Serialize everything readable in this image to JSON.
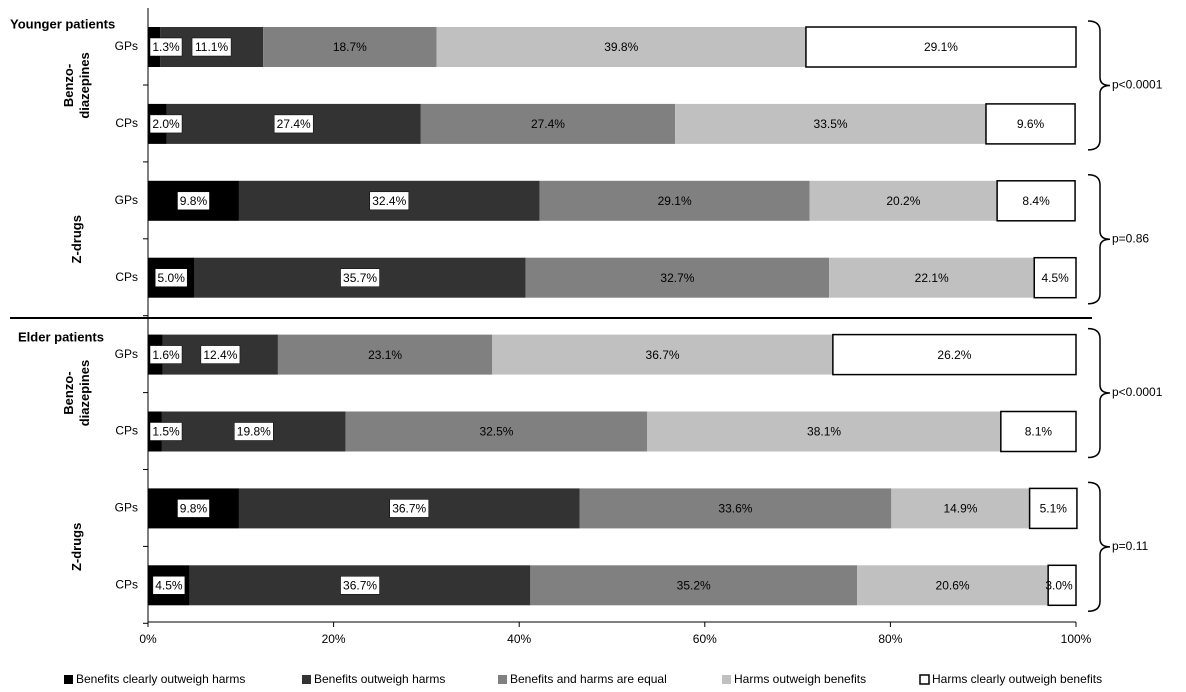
{
  "chart_data": {
    "type": "bar",
    "orientation": "horizontal",
    "stacked": true,
    "categories": [
      "GPs",
      "CPs",
      "GPs",
      "CPs",
      "GPs",
      "CPs",
      "GPs",
      "CPs"
    ],
    "panels": [
      {
        "title": "Younger patients",
        "groups": [
          {
            "label": [
              "Benzo-",
              "diazepines"
            ],
            "p_value": "p<0.0001"
          },
          {
            "label": [
              "Z-drugs"
            ],
            "p_value": "p=0.86"
          }
        ]
      },
      {
        "title": "Elder patients",
        "groups": [
          {
            "label": [
              "Benzo-",
              "diazepines"
            ],
            "p_value": "p<0.0001"
          },
          {
            "label": [
              "Z-drugs"
            ],
            "p_value": "p=0.11"
          }
        ]
      }
    ],
    "series": [
      {
        "name": "Benefits clearly outweigh harms",
        "color": "#000000",
        "values": [
          1.3,
          2.0,
          9.8,
          5.0,
          1.6,
          1.5,
          9.8,
          4.5
        ],
        "value_labels": [
          "1.3%",
          "2.0%",
          "9.8%",
          "5.0%",
          "1.6%",
          "1.5%",
          "9.8%",
          "4.5%"
        ]
      },
      {
        "name": "Benefits outweigh harms",
        "color": "#333333",
        "values": [
          11.1,
          27.4,
          32.4,
          35.7,
          12.4,
          19.8,
          36.7,
          36.7
        ],
        "value_labels": [
          "11.1%",
          "27.4%",
          "32.4%",
          "35.7%",
          "12.4%",
          "19.8%",
          "36.7%",
          "36.7%"
        ]
      },
      {
        "name": "Benefits and harms are equal",
        "color": "#808080",
        "values": [
          18.7,
          27.4,
          29.1,
          32.7,
          23.1,
          32.5,
          33.6,
          35.2
        ],
        "value_labels": [
          "18.7%",
          "27.4%",
          "29.1%",
          "32.7%",
          "23.1%",
          "32.5%",
          "33.6%",
          "35.2%"
        ]
      },
      {
        "name": "Harms outweigh benefits",
        "color": "#c0c0c0",
        "values": [
          39.8,
          33.5,
          20.2,
          22.1,
          36.7,
          38.1,
          14.9,
          20.6
        ],
        "value_labels": [
          "39.8%",
          "33.5%",
          "20.2%",
          "22.1%",
          "36.7%",
          "38.1%",
          "14.9%",
          "20.6%"
        ]
      },
      {
        "name": "Harms clearly outweigh benefits",
        "color": "#ffffff",
        "values": [
          29.1,
          9.6,
          8.4,
          4.5,
          26.2,
          8.1,
          5.1,
          3.0
        ],
        "value_labels": [
          "29.1%",
          "9.6%",
          "8.4%",
          "4.5%",
          "26.2%",
          "8.1%",
          "5.1%",
          "3.0%"
        ]
      }
    ],
    "xlim": [
      0,
      100
    ],
    "xticks": [
      {
        "value": 0,
        "label": "0%"
      },
      {
        "value": 20,
        "label": "20%"
      },
      {
        "value": 40,
        "label": "40%"
      },
      {
        "value": 60,
        "label": "60%"
      },
      {
        "value": 80,
        "label": "80%"
      },
      {
        "value": 100,
        "label": "100%"
      }
    ],
    "legend": "bottom"
  }
}
